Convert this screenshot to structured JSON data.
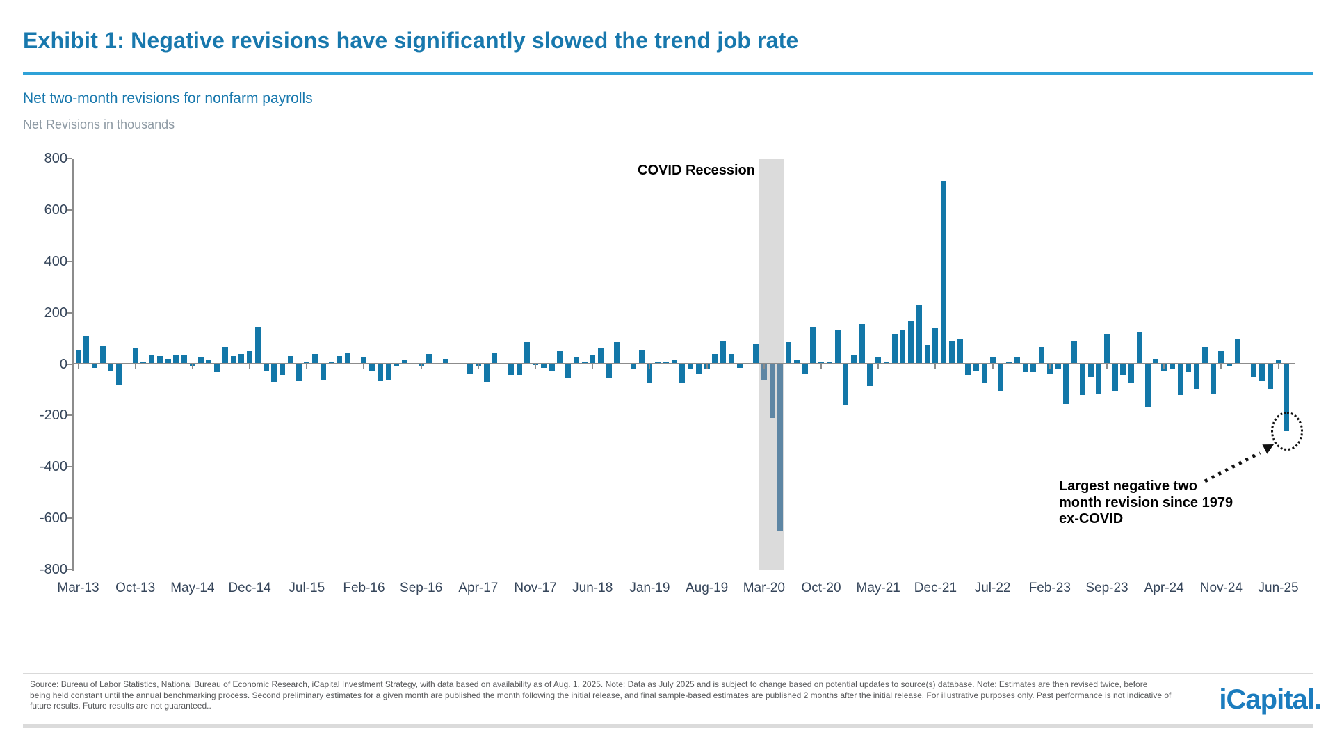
{
  "header": {
    "title": "Exhibit 1: Negative revisions have significantly slowed the trend job rate",
    "subtitle": "Net two-month revisions for nonfarm payrolls",
    "units_label": "Net Revisions in thousands"
  },
  "chart_data": {
    "type": "bar",
    "title": "Net two-month revisions for nonfarm payrolls",
    "ylabel": "Net Revisions in thousands",
    "ylim": [
      -800,
      800
    ],
    "ytick_labels": [
      "800",
      "600",
      "400",
      "200",
      "0",
      "-200",
      "-400",
      "-600",
      "-800"
    ],
    "xtick_labels": [
      "Mar-13",
      "Oct-13",
      "May-14",
      "Dec-14",
      "Jul-15",
      "Feb-16",
      "Sep-16",
      "Apr-17",
      "Nov-17",
      "Jun-18",
      "Jan-19",
      "Aug-19",
      "Mar-20",
      "Oct-20",
      "May-21",
      "Dec-21",
      "Jul-22",
      "Feb-23",
      "Sep-23",
      "Apr-24",
      "Nov-24",
      "Jun-25"
    ],
    "xtick_every": 7,
    "start_month": "Mar-13",
    "end_month": "Jul-25",
    "values": [
      55,
      110,
      -15,
      70,
      -25,
      -80,
      5,
      60,
      10,
      35,
      30,
      20,
      35,
      35,
      -10,
      25,
      15,
      -30,
      65,
      30,
      40,
      50,
      145,
      -25,
      -70,
      -45,
      30,
      -65,
      10,
      40,
      -60,
      10,
      30,
      45,
      0,
      25,
      -25,
      -65,
      -60,
      -10,
      15,
      0,
      -10,
      40,
      0,
      20,
      5,
      5,
      -40,
      -10,
      -70,
      45,
      0,
      -45,
      -45,
      85,
      -5,
      -15,
      -25,
      50,
      -55,
      25,
      10,
      35,
      60,
      -55,
      85,
      0,
      -20,
      55,
      -75,
      10,
      10,
      15,
      -75,
      -20,
      -40,
      -20,
      40,
      90,
      40,
      -15,
      5,
      80,
      -60,
      -210,
      -650,
      85,
      15,
      -40,
      145,
      10,
      10,
      130,
      -160,
      35,
      155,
      -85,
      25,
      10,
      115,
      130,
      170,
      230,
      75,
      140,
      710,
      90,
      95,
      -45,
      -25,
      -75,
      25,
      -105,
      10,
      25,
      -30,
      -30,
      65,
      -40,
      -20,
      -155,
      90,
      -120,
      -50,
      -115,
      115,
      -105,
      -45,
      -75,
      125,
      -170,
      20,
      -25,
      -20,
      -120,
      -30,
      -95,
      65,
      -115,
      50,
      -10,
      100,
      0,
      -50,
      -65,
      -100,
      15,
      -260
    ],
    "bar_color": "#1377A8",
    "muted_bar_color": "#5E86A4",
    "axis_color": "#8C8C8C",
    "label_color": "#35455A",
    "recession_band": {
      "label": "COVID Recession",
      "from_index": 84,
      "to_index": 86,
      "color": "#DBDBDB"
    },
    "annotation": {
      "lines": [
        "Largest negative two",
        "month revision since 1979",
        "ex-COVID"
      ]
    }
  },
  "footer": {
    "lines": [
      "Source: Bureau of Labor Statistics, National Bureau of Economic Research, iCapital Investment Strategy, with data based on availability as of Aug. 1, 2025. Note: Data as July 2025 and is subject to change based on potential updates to source(s) database. Note: Estimates are then revised twice, before",
      "being held constant until the annual benchmarking process. Second preliminary estimates for a given month are published the month following the initial release, and final sample-based estimates are published 2 months after the initial release. For illustrative purposes only. Past performance is not indicative of",
      "future results. Future results are not guaranteed.."
    ],
    "logo_text": "iCapital."
  }
}
